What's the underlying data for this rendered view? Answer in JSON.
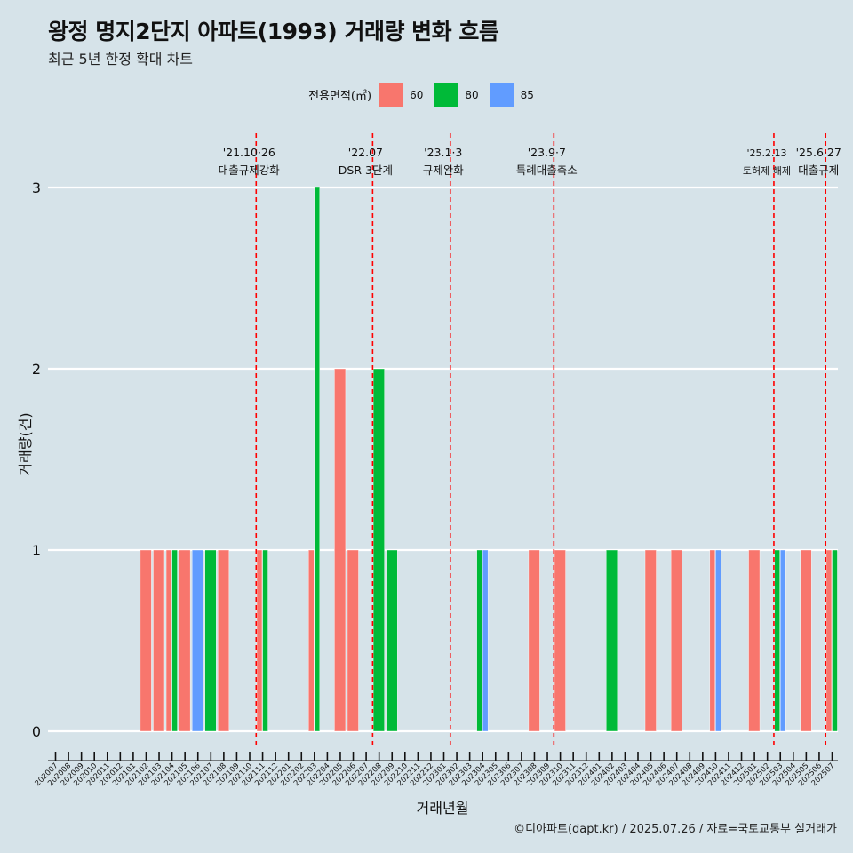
{
  "title": "왕정 명지2단지 아파트(1993) 거래량 변화 흐름",
  "subtitle": "최근 5년 한정 확대 차트",
  "legend": {
    "title": "전용면적(㎡)",
    "items": [
      {
        "label": "60",
        "color": "#F8766D"
      },
      {
        "label": "80",
        "color": "#00BA38"
      },
      {
        "label": "85",
        "color": "#619CFF"
      }
    ]
  },
  "caption": "©디아파트(dapt.kr) / 2025.07.26 / 자료=국토교통부 실거래가",
  "chart_data": {
    "type": "bar",
    "xlabel": "거래년월",
    "ylabel": "거래량(건)",
    "ylim": [
      0,
      3
    ],
    "yticks": [
      0,
      1,
      2,
      3
    ],
    "categories": [
      "202007",
      "202008",
      "202009",
      "202010",
      "202011",
      "202012",
      "202101",
      "202102",
      "202103",
      "202104",
      "202105",
      "202106",
      "202107",
      "202108",
      "202109",
      "202110",
      "202111",
      "202112",
      "202201",
      "202202",
      "202203",
      "202204",
      "202205",
      "202206",
      "202207",
      "202208",
      "202209",
      "202210",
      "202211",
      "202212",
      "202301",
      "202302",
      "202303",
      "202304",
      "202305",
      "202306",
      "202307",
      "202308",
      "202309",
      "202310",
      "202311",
      "202312",
      "202401",
      "202402",
      "202403",
      "202404",
      "202405",
      "202406",
      "202407",
      "202408",
      "202409",
      "202410",
      "202411",
      "202412",
      "202501",
      "202502",
      "202503",
      "202504",
      "202505",
      "202506",
      "202507"
    ],
    "series": [
      {
        "name": "60",
        "color": "#F8766D",
        "values": [
          0,
          0,
          0,
          0,
          0,
          0,
          0,
          1,
          1,
          1,
          1,
          0,
          0,
          1,
          0,
          0,
          1,
          0,
          0,
          0,
          1,
          0,
          2,
          1,
          0,
          0,
          0,
          0,
          0,
          0,
          0,
          0,
          0,
          0,
          0,
          0,
          0,
          1,
          0,
          1,
          0,
          0,
          0,
          0,
          0,
          0,
          1,
          0,
          1,
          0,
          0,
          1,
          0,
          0,
          1,
          0,
          0,
          0,
          1,
          0,
          1
        ]
      },
      {
        "name": "80",
        "color": "#00BA38",
        "values": [
          0,
          0,
          0,
          0,
          0,
          0,
          0,
          0,
          0,
          1,
          0,
          0,
          1,
          0,
          0,
          0,
          1,
          0,
          0,
          0,
          3,
          0,
          0,
          0,
          0,
          2,
          1,
          0,
          0,
          0,
          0,
          0,
          0,
          1,
          0,
          0,
          0,
          0,
          0,
          0,
          0,
          0,
          0,
          1,
          0,
          0,
          0,
          0,
          0,
          0,
          0,
          0,
          0,
          0,
          0,
          0,
          1,
          0,
          0,
          0,
          1
        ]
      },
      {
        "name": "85",
        "color": "#619CFF",
        "values": [
          0,
          0,
          0,
          0,
          0,
          0,
          0,
          0,
          0,
          0,
          0,
          1,
          0,
          0,
          0,
          0,
          0,
          0,
          0,
          0,
          0,
          0,
          0,
          0,
          0,
          0,
          0,
          0,
          0,
          0,
          0,
          0,
          0,
          1,
          0,
          0,
          0,
          0,
          0,
          0,
          0,
          0,
          0,
          0,
          0,
          0,
          0,
          0,
          0,
          0,
          0,
          1,
          0,
          0,
          0,
          0,
          1,
          0,
          0,
          0,
          0
        ]
      }
    ],
    "annotations": [
      {
        "x": "202110",
        "date": "'21.10·26",
        "label": "대출규제강화"
      },
      {
        "x": "202207",
        "date": "'22.07",
        "label": "DSR 3단계"
      },
      {
        "x": "202301",
        "date": "'23.1·3",
        "label": "규제완화"
      },
      {
        "x": "202309",
        "date": "'23.9·7",
        "label": "특례대출축소"
      },
      {
        "x": "202502",
        "date": "'25.2.13",
        "label": "토허제 해제"
      },
      {
        "x": "202506",
        "date": "'25.6·27",
        "label": "대출규제"
      }
    ],
    "grid": true
  }
}
